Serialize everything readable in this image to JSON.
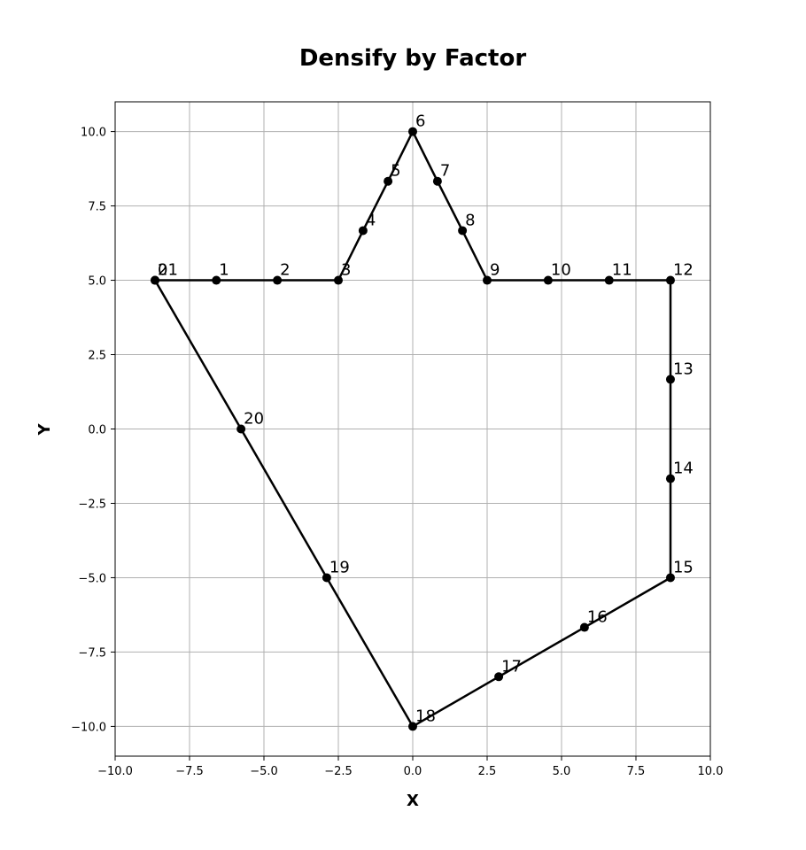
{
  "chart_data": {
    "type": "line",
    "title": "Densify by Factor",
    "xlabel": "X",
    "ylabel": "Y",
    "xlim": [
      -10,
      10
    ],
    "ylim": [
      -11,
      11
    ],
    "xticks": [
      -10,
      -7.5,
      -5,
      -2.5,
      0,
      2.5,
      5,
      7.5,
      10
    ],
    "yticks": [
      -10,
      -7.5,
      -5,
      -2.5,
      0,
      2.5,
      5,
      7.5,
      10
    ],
    "xtick_labels": [
      "−10.0",
      "−7.5",
      "−5.0",
      "−2.5",
      "0.0",
      "2.5",
      "5.0",
      "7.5",
      "10.0"
    ],
    "ytick_labels": [
      "−10.0",
      "−7.5",
      "−5.0",
      "−2.5",
      "0.0",
      "2.5",
      "5.0",
      "7.5",
      "10.0"
    ],
    "grid": true,
    "line_color": "#000000",
    "points": [
      {
        "label": "0",
        "x": -8.66,
        "y": 5.0
      },
      {
        "label": "1",
        "x": -6.6,
        "y": 5.0
      },
      {
        "label": "2",
        "x": -4.55,
        "y": 5.0
      },
      {
        "label": "3",
        "x": -2.5,
        "y": 5.0
      },
      {
        "label": "4",
        "x": -1.67,
        "y": 6.67
      },
      {
        "label": "5",
        "x": -0.83,
        "y": 8.33
      },
      {
        "label": "6",
        "x": 0.0,
        "y": 10.0
      },
      {
        "label": "7",
        "x": 0.83,
        "y": 8.33
      },
      {
        "label": "8",
        "x": 1.67,
        "y": 6.67
      },
      {
        "label": "9",
        "x": 2.5,
        "y": 5.0
      },
      {
        "label": "10",
        "x": 4.55,
        "y": 5.0
      },
      {
        "label": "11",
        "x": 6.6,
        "y": 5.0
      },
      {
        "label": "12",
        "x": 8.66,
        "y": 5.0
      },
      {
        "label": "13",
        "x": 8.66,
        "y": 1.67
      },
      {
        "label": "14",
        "x": 8.66,
        "y": -1.67
      },
      {
        "label": "15",
        "x": 8.66,
        "y": -5.0
      },
      {
        "label": "16",
        "x": 5.77,
        "y": -6.67
      },
      {
        "label": "17",
        "x": 2.89,
        "y": -8.33
      },
      {
        "label": "18",
        "x": 0.0,
        "y": -10.0
      },
      {
        "label": "19",
        "x": -2.89,
        "y": -5.0
      },
      {
        "label": "20",
        "x": -5.77,
        "y": 0.0
      },
      {
        "label": "21",
        "x": -8.66,
        "y": 5.0
      }
    ]
  }
}
